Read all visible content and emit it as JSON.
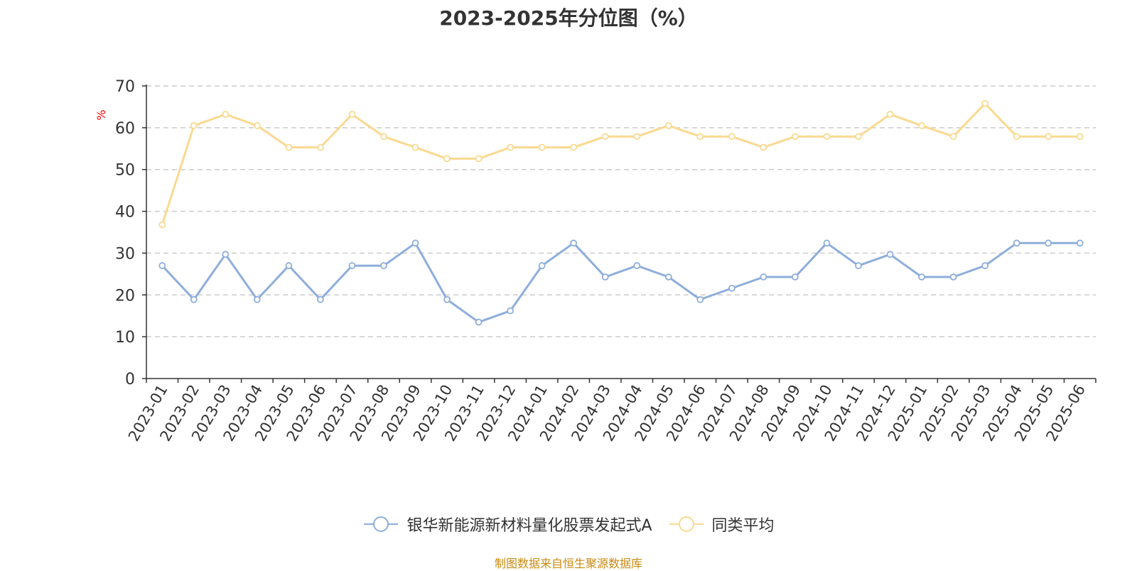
{
  "title": "2023-2025年分位图（%）",
  "source": "制图数据来自恒生聚源数据库",
  "colors": {
    "series_a": "#8eaedb",
    "series_b": "#fad990",
    "axis": "#333333",
    "grid": "#cccccc",
    "unit": "#ff0000",
    "source": "#c98a10"
  },
  "chart_data": {
    "type": "line",
    "title": "2023-2025年分位图（%）",
    "ylabel": "%",
    "ylim": [
      0,
      70
    ],
    "yticks": [
      0,
      10,
      20,
      30,
      40,
      50,
      60,
      70
    ],
    "grid": true,
    "legend_position": "bottom",
    "categories": [
      "2023-01",
      "2023-02",
      "2023-03",
      "2023-04",
      "2023-05",
      "2023-06",
      "2023-07",
      "2023-08",
      "2023-09",
      "2023-10",
      "2023-11",
      "2023-12",
      "2024-01",
      "2024-02",
      "2024-03",
      "2024-04",
      "2024-05",
      "2024-06",
      "2024-07",
      "2024-08",
      "2024-09",
      "2024-10",
      "2024-11",
      "2024-12",
      "2025-01",
      "2025-02",
      "2025-03",
      "2025-04",
      "2025-05",
      "2025-06"
    ],
    "series": [
      {
        "name": "银华新能源新材料量化股票发起式A",
        "color": "#8eaedb",
        "values": [
          27.0,
          18.9,
          29.7,
          18.9,
          27.0,
          18.9,
          27.0,
          27.0,
          32.4,
          18.9,
          13.5,
          16.2,
          27.0,
          32.4,
          24.3,
          27.0,
          24.3,
          18.9,
          21.6,
          24.3,
          24.3,
          32.4,
          27.0,
          29.7,
          24.3,
          24.3,
          27.0,
          32.4,
          32.4,
          32.4
        ]
      },
      {
        "name": "同类平均",
        "color": "#fad990",
        "values": [
          36.8,
          60.5,
          63.2,
          60.5,
          55.3,
          55.3,
          63.2,
          57.9,
          55.3,
          52.6,
          52.6,
          55.3,
          55.3,
          55.3,
          57.9,
          57.9,
          60.5,
          57.9,
          57.9,
          55.3,
          57.9,
          57.9,
          57.9,
          63.2,
          60.5,
          57.9,
          65.8,
          57.9,
          57.9,
          57.9
        ]
      }
    ]
  }
}
